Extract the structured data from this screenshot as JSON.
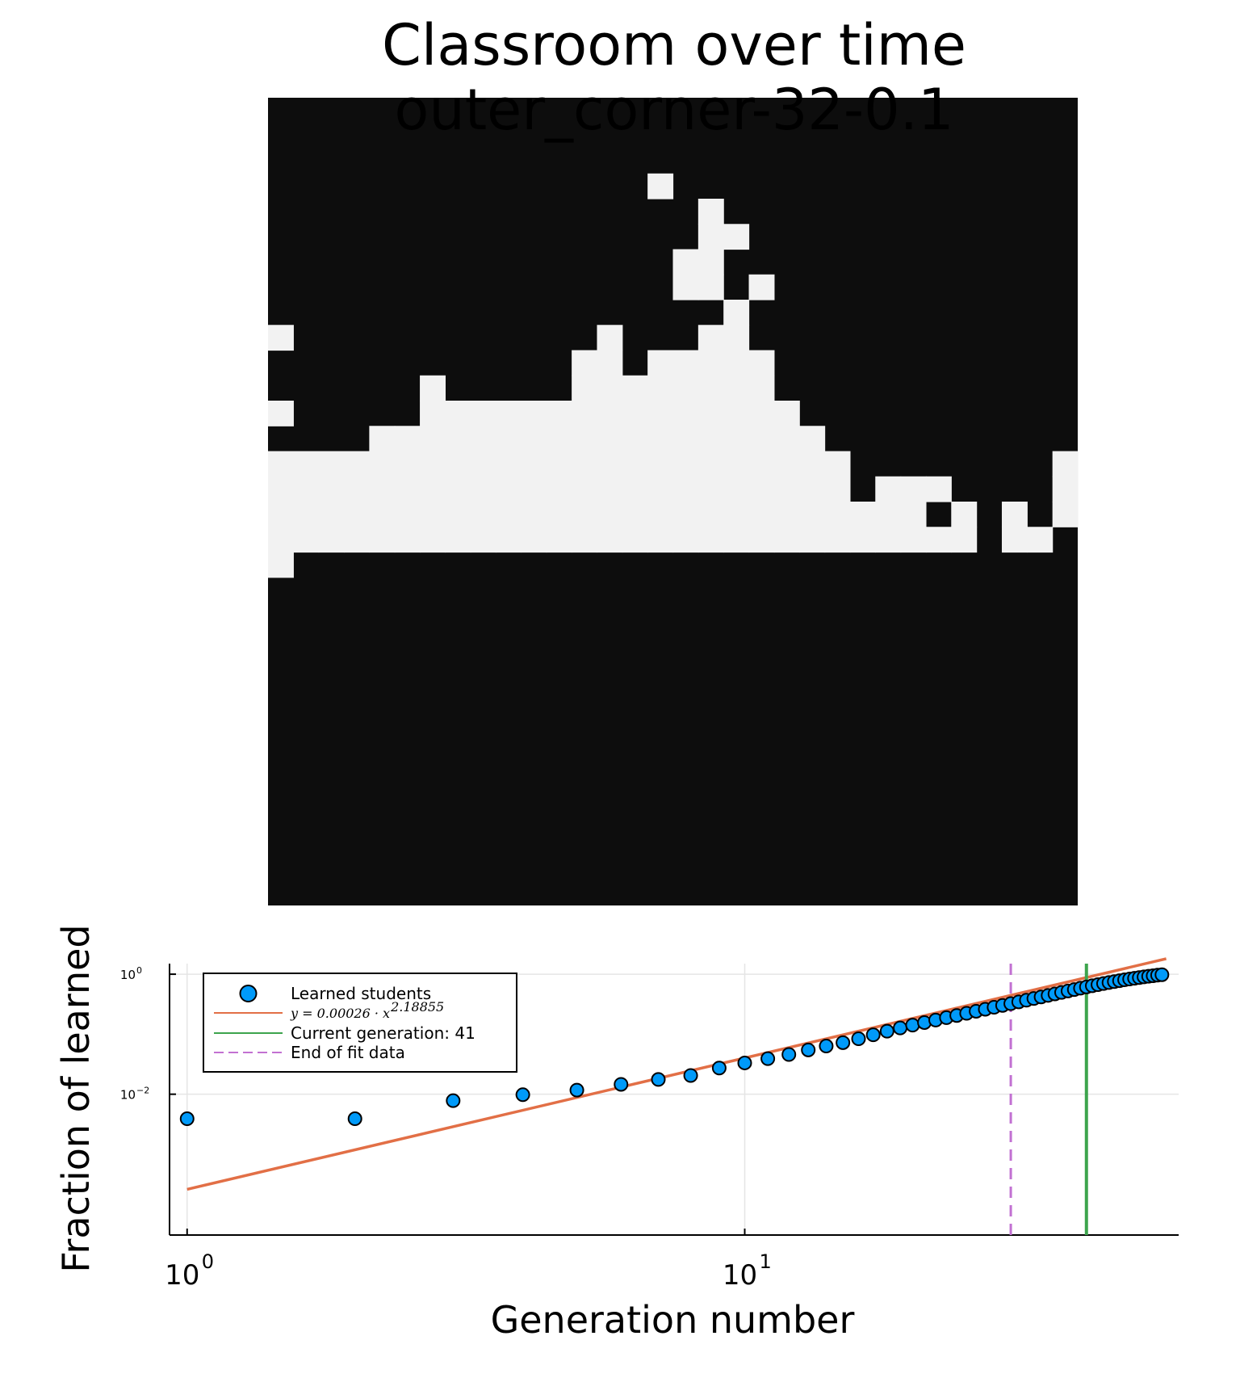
{
  "chart_data": [
    {
      "type": "heatmap",
      "title_lines": [
        "Classroom over time",
        "outer_corner-32-0.1"
      ],
      "grid_size": 32,
      "colors": {
        "zero": "#0d0d0d",
        "one": "#f2f2f2"
      },
      "rows": [
        "00000000000000000000000000000000",
        "00000000000000000000000000000000",
        "00000000000000000000000000000000",
        "00000000000000010000000000000000",
        "00000000000000000100000000000000",
        "00000000000000000110000000000000",
        "00000000000000001100000000000000",
        "00000000000000001101000000000000",
        "00000000000000000010000000000000",
        "10000000000001000110000000000000",
        "00000000000011011111000000000000",
        "00000010000011111111000000000000",
        "10000011111111111111100000000000",
        "00001111111111111111110000000000",
        "11111111111111111111111000000001",
        "11111111111111111111111011100001",
        "11111111111111111111111111010101",
        "11111111111111111111111111110110",
        "10000000000000000000000000000000",
        "00000000000000000000000000000000",
        "00000000000000000000000000000000",
        "00000000000000000000000000000000",
        "00000000000000000000000000000000",
        "00000000000000000000000000000000",
        "00000000000000000000000000000000",
        "00000000000000000000000000000000",
        "00000000000000000000000000000000",
        "00000000000000000000000000000000",
        "00000000000000000000000000000000",
        "00000000000000000000000000000000",
        "00000000000000000000000000000000",
        "00000000000000000000000000000000"
      ]
    },
    {
      "type": "scatter",
      "xlabel": "Generation number",
      "ylabel": "Fraction of learned",
      "xscale": "log10",
      "yscale": "log10",
      "xlim": [
        0.93,
        60
      ],
      "ylim": [
        4.5e-05,
        1.5
      ],
      "x_ticks": [
        {
          "value": 1,
          "base": "10",
          "exp": "0"
        },
        {
          "value": 10,
          "base": "10",
          "exp": "1"
        }
      ],
      "y_ticks": [
        {
          "value": 1,
          "base": "10",
          "exp": "0"
        },
        {
          "value": 0.01,
          "base": "10",
          "exp": "−2"
        }
      ],
      "grid": true,
      "legend_position": "top-left",
      "series": [
        {
          "name": "Learned students",
          "kind": "scatter",
          "color": "#009af9",
          "x": [
            1,
            2,
            3,
            4,
            5,
            6,
            7,
            8,
            9,
            10,
            11,
            12,
            13,
            14,
            15,
            16,
            17,
            18,
            19,
            20,
            21,
            22,
            23,
            24,
            25,
            26,
            27,
            28,
            29,
            30,
            31,
            32,
            33,
            34,
            35,
            36,
            37,
            38,
            39,
            40,
            41,
            42,
            43,
            44,
            45,
            46,
            47,
            48,
            49,
            50,
            51,
            52,
            53,
            54,
            55,
            56
          ],
          "values": [
            0.0039,
            0.0039,
            0.0078,
            0.0098,
            0.0117,
            0.0146,
            0.0176,
            0.0205,
            0.0273,
            0.0332,
            0.0391,
            0.0459,
            0.0547,
            0.0635,
            0.0723,
            0.084,
            0.0977,
            0.1123,
            0.127,
            0.1416,
            0.1563,
            0.1719,
            0.1885,
            0.2051,
            0.2227,
            0.2412,
            0.2607,
            0.2813,
            0.3018,
            0.3232,
            0.3457,
            0.3691,
            0.3936,
            0.418,
            0.4434,
            0.4697,
            0.4971,
            0.5254,
            0.5547,
            0.584,
            0.6133,
            0.6416,
            0.6699,
            0.6982,
            0.7256,
            0.7529,
            0.7803,
            0.8057,
            0.8311,
            0.8555,
            0.8789,
            0.9014,
            0.9229,
            0.9434,
            0.9629,
            0.9805
          ]
        },
        {
          "name": "y = 0.00026 · x^2.18855",
          "kind": "line",
          "color": "#e26f46",
          "a": 0.00026,
          "b": 2.18855,
          "x_range": [
            1,
            57
          ]
        },
        {
          "name": "Current generation: 41",
          "kind": "vline",
          "color": "#3da44d",
          "x": 41
        },
        {
          "name": "End of fit data",
          "kind": "vline-dashed",
          "color": "#c271d2",
          "x": 30
        }
      ],
      "legend": {
        "entries": [
          {
            "label": "Learned students"
          },
          {
            "label_parts": {
              "lhs": "y = 0.00026 · x",
              "exp": "2.18855"
            }
          },
          {
            "label": "Current generation: 41"
          },
          {
            "label": "End of fit data"
          }
        ]
      }
    }
  ]
}
